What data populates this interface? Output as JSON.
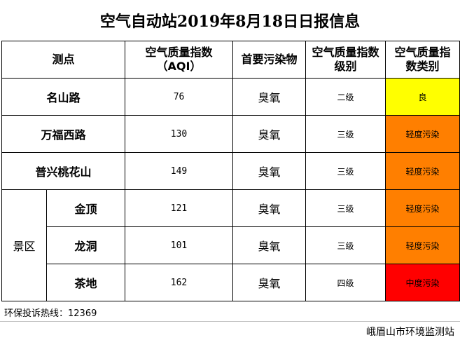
{
  "title": "空气自动站2019年8月18日日报信息",
  "headers": {
    "station": "测点",
    "aqi_line1": "空气质量指数",
    "aqi_line2": "（AQI）",
    "pollutant": "首要污染物",
    "level_line1": "空气质量指数",
    "level_line2": "级别",
    "category_line1": "空气质量指",
    "category_line2": "数类别"
  },
  "scenic_group": "景区",
  "rows": [
    {
      "station": "名山路",
      "aqi": "76",
      "pollutant": "臭氧",
      "level": "二级",
      "category": "良",
      "color": "#ffff00"
    },
    {
      "station": "万福西路",
      "aqi": "130",
      "pollutant": "臭氧",
      "level": "三级",
      "category": "轻度污染",
      "color": "#ff7f00"
    },
    {
      "station": "普兴桃花山",
      "aqi": "149",
      "pollutant": "臭氧",
      "level": "三级",
      "category": "轻度污染",
      "color": "#ff7f00"
    },
    {
      "station": "金顶",
      "aqi": "121",
      "pollutant": "臭氧",
      "level": "三级",
      "category": "轻度污染",
      "color": "#ff7f00"
    },
    {
      "station": "龙洞",
      "aqi": "101",
      "pollutant": "臭氧",
      "level": "三级",
      "category": "轻度污染",
      "color": "#ff7f00"
    },
    {
      "station": "茶地",
      "aqi": "162",
      "pollutant": "臭氧",
      "level": "四级",
      "category": "中度污染",
      "color": "#ff0000"
    }
  ],
  "hotline": "环保投诉热线：12369",
  "agency": "峨眉山市环境监测站"
}
